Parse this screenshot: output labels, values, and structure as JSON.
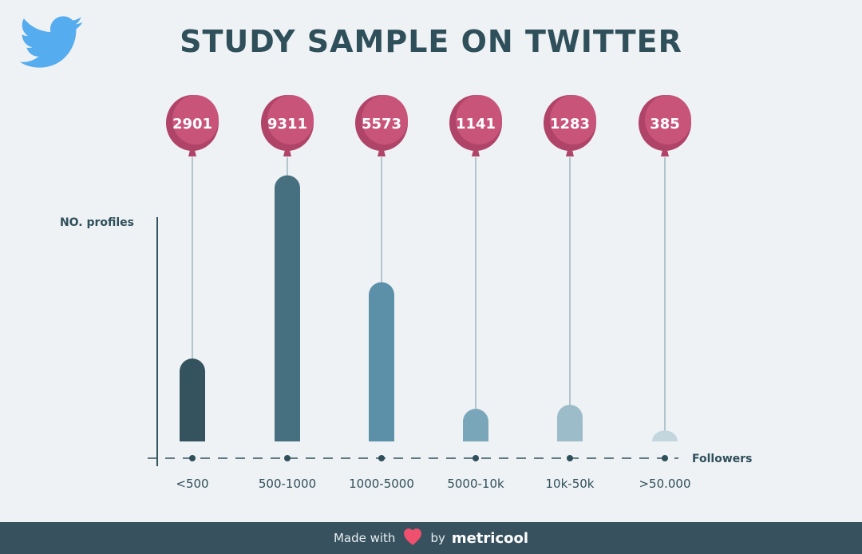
{
  "title": "STUDY SAMPLE ON TWITTER",
  "logo": "twitter-bird-icon",
  "chart_data": {
    "type": "bar",
    "title": "STUDY SAMPLE ON TWITTER",
    "xlabel": "Followers",
    "ylabel": "NO. profiles",
    "categories": [
      "<500",
      "500-1000",
      "1000-5000",
      "5000-10k",
      "10k-50k",
      ">50.000"
    ],
    "values": [
      2901,
      9311,
      5573,
      1141,
      1283,
      385
    ],
    "value_labels": [
      "2901",
      "9311",
      "5573",
      "1141",
      "1283",
      "385"
    ],
    "ylim": [
      0,
      10000
    ],
    "grid": false,
    "bar_colors": [
      "#34535f",
      "#46707f",
      "#5b90a8",
      "#7aa6ba",
      "#9dbcc9",
      "#c3d6de"
    ],
    "balloon_color": "#c8547a"
  },
  "footer": {
    "made_with": "Made with",
    "heart_icon": "heart-icon",
    "by": "by",
    "brand": "metricool",
    "heart_color": "#f0506e"
  }
}
